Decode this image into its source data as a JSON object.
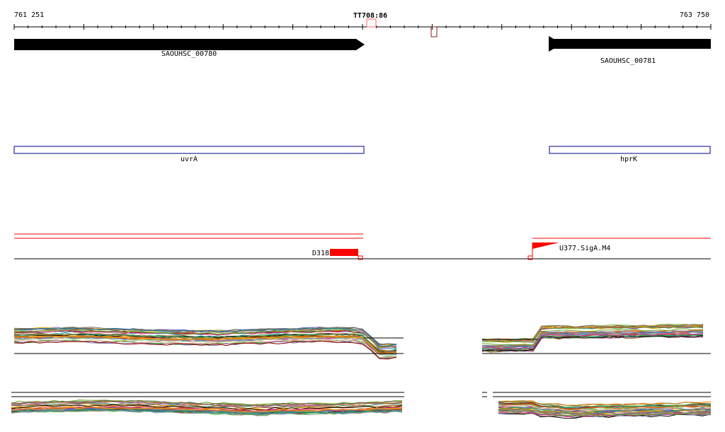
{
  "ruler": {
    "start_label": "761 251",
    "end_label": "763 750",
    "marker_label": "TT708:86"
  },
  "genes": [
    {
      "id": "SAOUHSC_00780",
      "label": "SAOUHSC_00780",
      "strand": "+"
    },
    {
      "id": "SAOUHSC_00781",
      "label": "SAOUHSC_00781",
      "strand": "-"
    }
  ],
  "gene_names": [
    {
      "label": "uvrA"
    },
    {
      "label": "hprK"
    }
  ],
  "features": [
    {
      "label": "D318",
      "kind": "block",
      "color": "#ff0000"
    },
    {
      "label": "U377.SigA.M4",
      "kind": "promoter",
      "color": "#ff0000"
    }
  ],
  "colors": {
    "gene_arrow": "#000000",
    "gene_box": "#00008b",
    "feature_line": "#ff0000",
    "marker": "#8b1a1a"
  },
  "expression_palette": [
    "#1b9e77",
    "#d95f02",
    "#7570b3",
    "#e7298a",
    "#66a61e",
    "#e6ab02",
    "#a6761d",
    "#666666",
    "#1f78b4",
    "#b2df8a",
    "#fb9a99",
    "#8b0000",
    "#6a3d9a",
    "#b15928",
    "#ff7f00",
    "#33a02c",
    "#984ea3",
    "#4daf4a",
    "#377eb8",
    "#a65628",
    "#999999",
    "#000000"
  ]
}
